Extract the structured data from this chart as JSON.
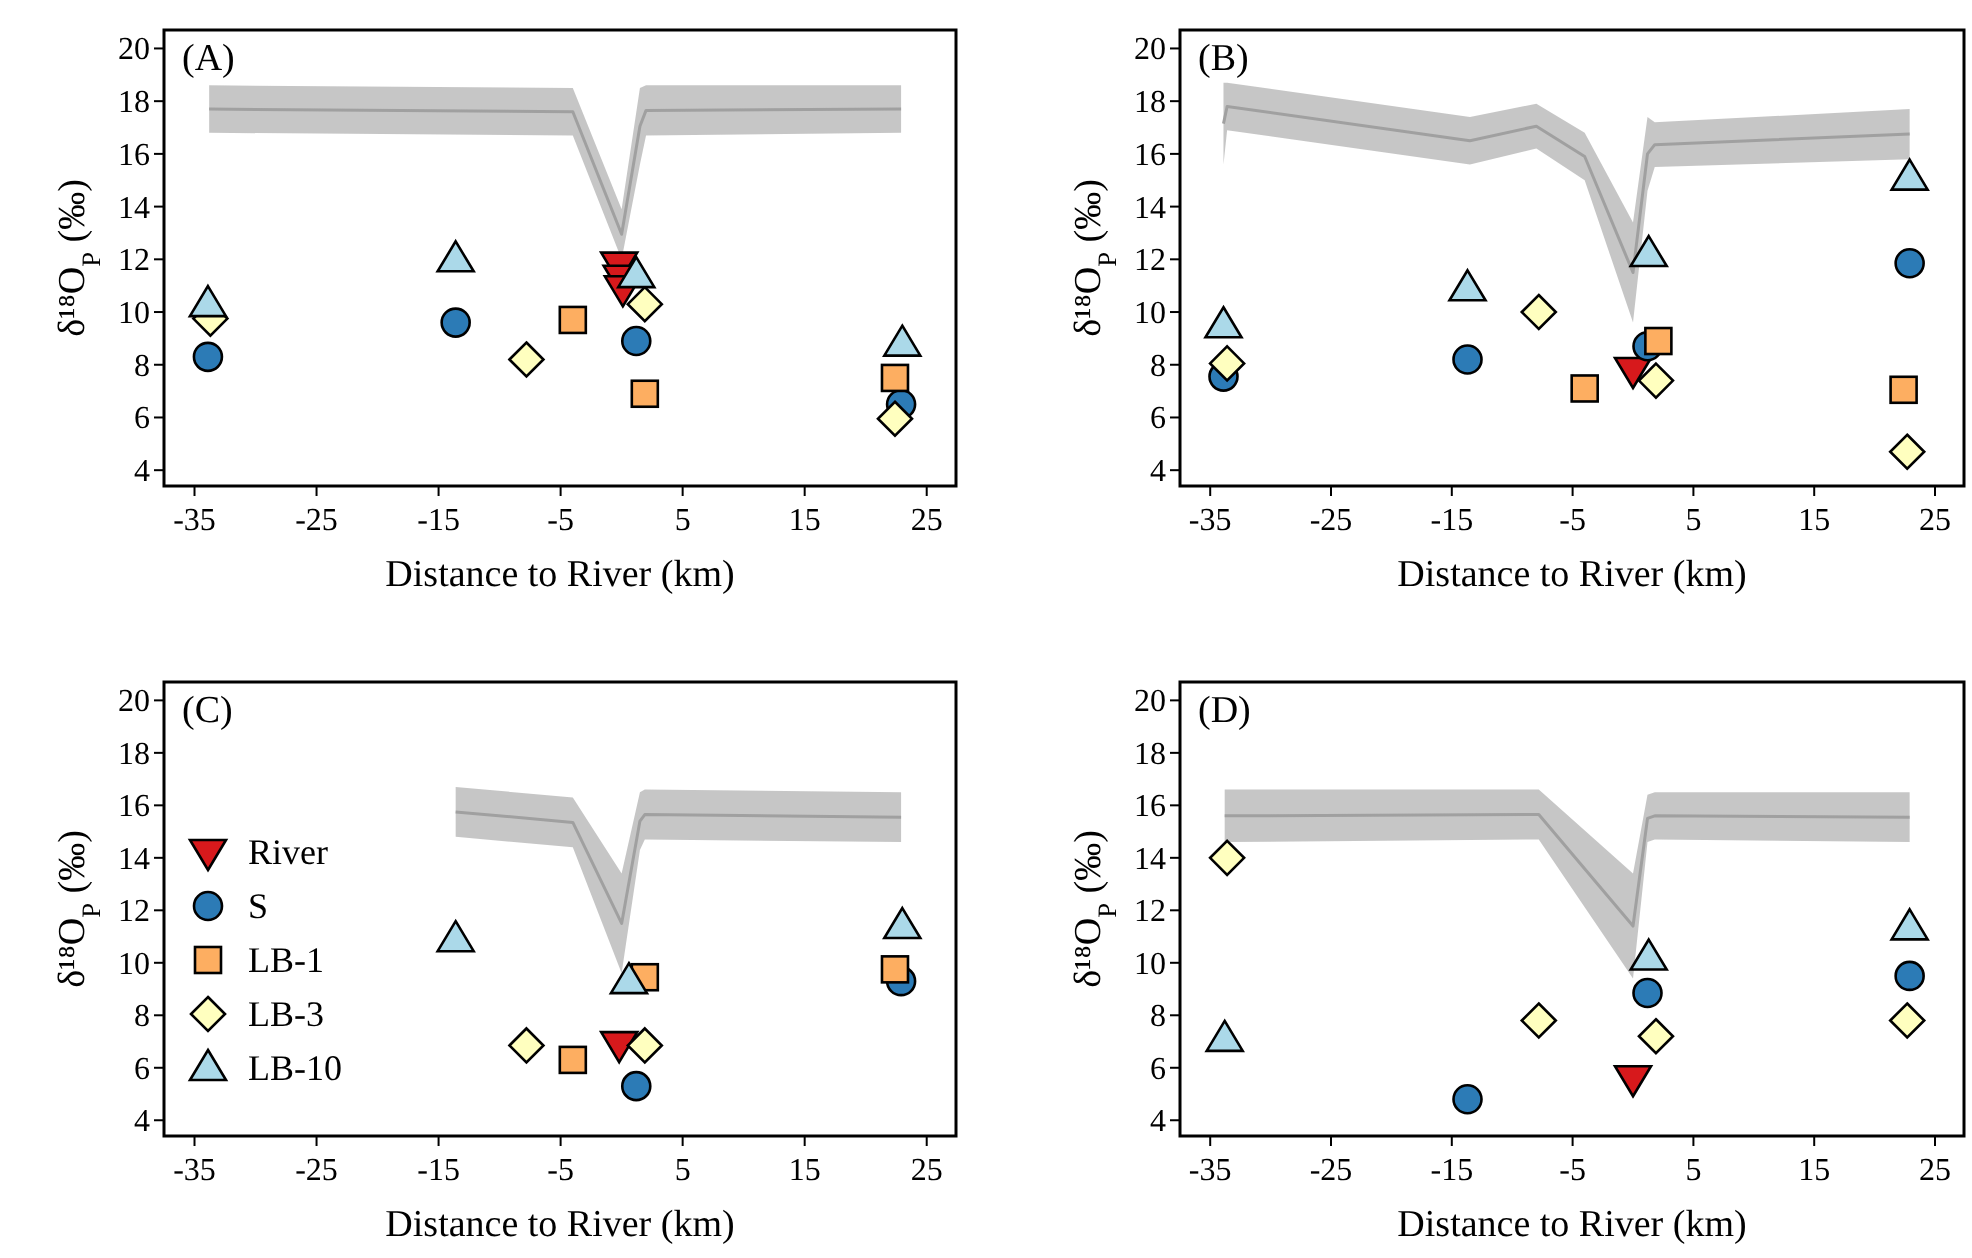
{
  "chart_data": [
    {
      "type": "scatter",
      "title": "(A)",
      "xlabel": "Distance to River (km)",
      "ylabel": "δ¹⁸O$_{P}$ (‰)",
      "xlim": [
        -37.5,
        27.4
      ],
      "ylim": [
        3.4,
        20.7
      ],
      "xticks": [
        -35,
        -25,
        -15,
        -5,
        5,
        15,
        25
      ],
      "yticks": [
        4,
        6,
        8,
        10,
        12,
        14,
        16,
        18,
        20
      ],
      "grid": false,
      "legend": false,
      "series": [
        {
          "type": "line",
          "marker": "none",
          "color": "#a0a0a0",
          "x": [
            -33.8,
            -4,
            0,
            1.5,
            2,
            22.9
          ],
          "values": [
            17.7,
            17.6,
            12.95,
            17.05,
            17.65,
            17.7
          ],
          "lower": [
            16.8,
            16.7,
            12.0,
            15.6,
            16.7,
            16.8
          ],
          "upper": [
            18.6,
            18.5,
            13.9,
            18.5,
            18.6,
            18.6
          ]
        },
        {
          "color": "#d7191c",
          "x": [
            -0.2,
            0,
            0.1
          ],
          "values": [
            11.8,
            11.3,
            10.9
          ]
        },
        {
          "color": "#2c7bb6",
          "marker": "circle",
          "x": [
            -33.9,
            -13.6,
            1.2,
            22.9
          ],
          "values": [
            8.3,
            9.6,
            8.9,
            6.5
          ]
        },
        {
          "color": "#fdae61",
          "marker": "square",
          "x": [
            -4.0,
            1.9,
            22.4
          ],
          "values": [
            9.7,
            6.9,
            7.5
          ]
        },
        {
          "color": "#ffffbf",
          "marker": "diamond",
          "x": [
            -33.7,
            -7.8,
            1.9,
            22.4
          ],
          "values": [
            9.75,
            8.2,
            10.3,
            5.95
          ]
        },
        {
          "color": "#abd9e9",
          "marker": "triangle",
          "x": [
            -33.9,
            -13.6,
            1.2,
            23.0
          ],
          "values": [
            10.3,
            12.0,
            11.4,
            8.8
          ]
        }
      ]
    },
    {
      "type": "scatter",
      "title": "(B)",
      "xlabel": "Distance to River (km)",
      "ylabel": "δ¹⁸O$_{P}$ (‰)",
      "xlim": [
        -37.5,
        27.4
      ],
      "ylim": [
        3.4,
        20.7
      ],
      "xticks": [
        -35,
        -25,
        -15,
        -5,
        5,
        15,
        25
      ],
      "yticks": [
        4,
        6,
        8,
        10,
        12,
        14,
        16,
        18,
        20
      ],
      "grid": false,
      "legend": false,
      "series": [
        {
          "type": "line",
          "marker": "none",
          "color": "#a0a0a0",
          "x": [
            -33.9,
            -33.6,
            -13.5,
            -8,
            -4,
            0,
            1.2,
            1.8,
            22.9
          ],
          "values": [
            17.15,
            17.8,
            16.5,
            17.05,
            15.9,
            11.5,
            16.0,
            16.35,
            16.75
          ],
          "lower": [
            15.6,
            16.9,
            15.6,
            16.2,
            15.0,
            9.6,
            14.6,
            15.5,
            15.8
          ],
          "upper": [
            18.7,
            18.7,
            17.4,
            17.9,
            16.8,
            13.4,
            17.4,
            17.2,
            17.7
          ]
        },
        {
          "color": "#d7191c",
          "x": [
            0.0
          ],
          "values": [
            7.8
          ]
        },
        {
          "color": "#2c7bb6",
          "marker": "circle",
          "x": [
            -33.9,
            -13.7,
            1.2,
            22.9
          ],
          "values": [
            7.55,
            8.2,
            8.7,
            11.85
          ]
        },
        {
          "color": "#fdae61",
          "marker": "square",
          "x": [
            -4.0,
            2.1,
            22.4
          ],
          "values": [
            7.1,
            8.9,
            7.05
          ]
        },
        {
          "color": "#ffffbf",
          "marker": "diamond",
          "x": [
            -33.6,
            -7.8,
            1.9,
            22.7
          ],
          "values": [
            8.05,
            10.0,
            7.4,
            4.7
          ]
        },
        {
          "color": "#abd9e9",
          "marker": "triangle",
          "x": [
            -33.9,
            -13.7,
            1.3,
            22.9
          ],
          "values": [
            9.5,
            10.9,
            12.2,
            15.1
          ]
        }
      ]
    },
    {
      "type": "scatter",
      "title": "(C)",
      "xlabel": "Distance to River (km)",
      "ylabel": "δ¹⁸O$_{P}$ (‰)",
      "xlim": [
        -37.5,
        27.4
      ],
      "ylim": [
        3.4,
        20.7
      ],
      "xticks": [
        -35,
        -25,
        -15,
        -5,
        5,
        15,
        25
      ],
      "yticks": [
        4,
        6,
        8,
        10,
        12,
        14,
        16,
        18,
        20
      ],
      "grid": false,
      "legend": "left",
      "series": [
        {
          "type": "line",
          "marker": "none",
          "color": "#a0a0a0",
          "x": [
            -13.6,
            -4,
            0,
            1.5,
            1.9,
            22.9
          ],
          "values": [
            15.75,
            15.35,
            11.5,
            15.4,
            15.65,
            15.55
          ],
          "lower": [
            14.8,
            14.4,
            9.6,
            14.3,
            14.7,
            14.6
          ],
          "upper": [
            16.7,
            16.3,
            13.4,
            16.5,
            16.6,
            16.5
          ]
        },
        {
          "name": "River",
          "color": "#d7191c",
          "x": [
            -0.2
          ],
          "values": [
            6.9
          ]
        },
        {
          "name": "S",
          "color": "#2c7bb6",
          "marker": "circle",
          "x": [
            1.2,
            22.9
          ],
          "values": [
            5.3,
            9.3
          ]
        },
        {
          "name": "LB-1",
          "color": "#fdae61",
          "marker": "square",
          "x": [
            -4.0,
            1.9,
            22.4
          ],
          "values": [
            6.3,
            9.45,
            9.75
          ]
        },
        {
          "name": "LB-3",
          "color": "#ffffbf",
          "marker": "diamond",
          "x": [
            -7.8,
            1.9
          ],
          "values": [
            6.85,
            6.85
          ]
        },
        {
          "name": "LB-10",
          "color": "#abd9e9",
          "marker": "triangle",
          "x": [
            -13.6,
            0.6,
            23.0
          ],
          "values": [
            10.9,
            9.3,
            11.4
          ]
        }
      ]
    },
    {
      "type": "scatter",
      "title": "(D)",
      "xlabel": "Distance to River (km)",
      "ylabel": "δ¹⁸O$_{P}$ (‰)",
      "xlim": [
        -37.5,
        27.4
      ],
      "ylim": [
        3.4,
        20.7
      ],
      "xticks": [
        -35,
        -25,
        -15,
        -5,
        5,
        15,
        25
      ],
      "yticks": [
        4,
        6,
        8,
        10,
        12,
        14,
        16,
        18,
        20
      ],
      "grid": false,
      "legend": false,
      "series": [
        {
          "type": "line",
          "marker": "none",
          "color": "#a0a0a0",
          "x": [
            -33.8,
            -7.8,
            0,
            1.2,
            1.8,
            22.9
          ],
          "values": [
            15.6,
            15.65,
            11.4,
            15.5,
            15.6,
            15.55
          ],
          "lower": [
            14.6,
            14.7,
            9.4,
            14.6,
            14.7,
            14.6
          ],
          "upper": [
            16.6,
            16.6,
            13.4,
            16.4,
            16.5,
            16.5
          ]
        },
        {
          "color": "#d7191c",
          "x": [
            0.0
          ],
          "values": [
            5.6
          ]
        },
        {
          "color": "#2c7bb6",
          "marker": "circle",
          "x": [
            -13.7,
            1.2,
            22.9
          ],
          "values": [
            4.8,
            8.85,
            9.5
          ]
        },
        {
          "color": "#ffffbf",
          "marker": "diamond",
          "x": [
            -33.6,
            -7.8,
            1.9,
            22.7
          ],
          "values": [
            14.0,
            7.8,
            7.2,
            7.8
          ]
        },
        {
          "color": "#abd9e9",
          "marker": "triangle",
          "x": [
            -33.8,
            1.3,
            22.9
          ],
          "values": [
            7.1,
            10.2,
            11.35
          ]
        }
      ]
    }
  ]
}
